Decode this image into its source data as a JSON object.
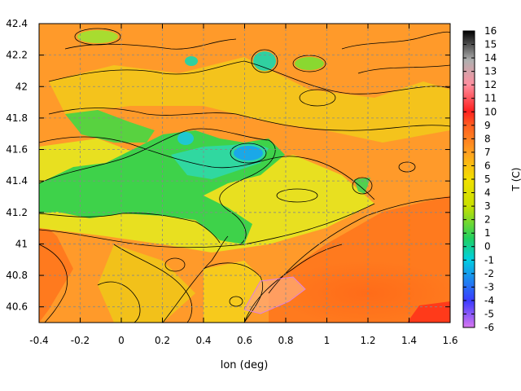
{
  "chart_data": {
    "type": "heatmap",
    "title": "",
    "xlabel": "lon (deg)",
    "ylabel": "",
    "colorbar_label": "T (C)",
    "xlim": [
      -0.4,
      1.6
    ],
    "ylim": [
      40.5,
      42.4
    ],
    "x_ticks": [
      "-0.4",
      "-0.2",
      "0",
      "0.2",
      "0.4",
      "0.6",
      "0.8",
      "1",
      "1.2",
      "1.4",
      "1.6"
    ],
    "y_ticks": [
      "40.6",
      "40.8",
      "41",
      "41.2",
      "41.4",
      "41.6",
      "41.8",
      "42",
      "42.2",
      "42.4"
    ],
    "colorbar_range": [
      -6,
      16
    ],
    "colorbar_ticks": [
      "16",
      "15",
      "14",
      "13",
      "12",
      "11",
      "10",
      "9",
      "8",
      "7",
      "6",
      "5",
      "4",
      "3",
      "2",
      "1",
      "0",
      "-1",
      "-2",
      "-3",
      "-4",
      "-5",
      "-6"
    ],
    "grid": true,
    "contours": true,
    "features": [
      {
        "kind": "cold-basin",
        "lon": 0.62,
        "lat": 41.58,
        "value": -1
      },
      {
        "kind": "cold-basin",
        "lon": 0.35,
        "lat": 41.45,
        "value": 1
      },
      {
        "kind": "cold-basin",
        "lon": 0.05,
        "lat": 41.3,
        "value": 2
      },
      {
        "kind": "cold-basin",
        "lon": 0.7,
        "lat": 42.15,
        "value": 1
      },
      {
        "kind": "cold-basin",
        "lon": 1.15,
        "lat": 41.35,
        "value": 3
      },
      {
        "kind": "warm-plain",
        "lon": 1.4,
        "lat": 40.8,
        "value": 9
      },
      {
        "kind": "warm-corner",
        "lon": 1.55,
        "lat": 40.55,
        "value": 10
      }
    ]
  }
}
